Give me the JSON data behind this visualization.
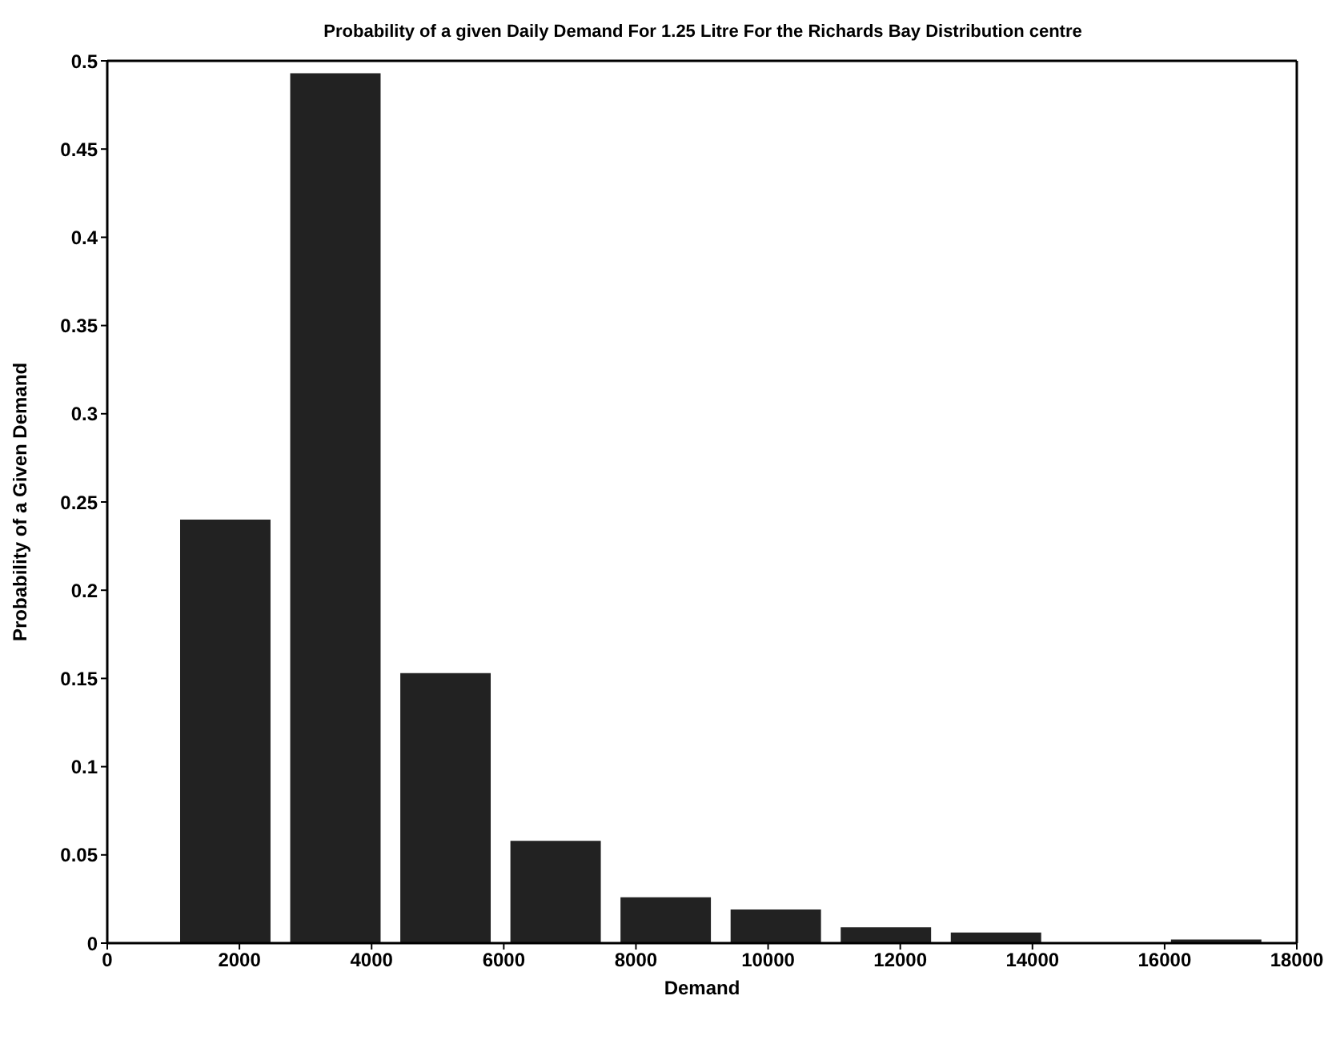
{
  "chart_data": {
    "type": "histogram",
    "title": "Probability of a given Daily Demand For 1.25 Litre For the Richards Bay Distribution centre",
    "xlabel": "Demand",
    "ylabel": "Probability of a Given Demand",
    "bins": [
      957,
      2623,
      4289,
      5955,
      7621,
      9287,
      10953,
      12619,
      14285,
      15951,
      17617
    ],
    "values": [
      0.24,
      0.493,
      0.153,
      0.058,
      0.026,
      0.019,
      0.009,
      0.006,
      0,
      0.002
    ],
    "color": "#222222",
    "xlim": [
      0,
      18000
    ],
    "xticks": [
      0,
      2000,
      4000,
      6000,
      8000,
      10000,
      12000,
      14000,
      16000,
      18000
    ],
    "ylim": [
      0,
      0.5
    ],
    "yticks": [
      0,
      0.05,
      0.1,
      0.15,
      0.2,
      0.25,
      0.3,
      0.35,
      0.4,
      0.45,
      0.5
    ],
    "grid": false
  }
}
